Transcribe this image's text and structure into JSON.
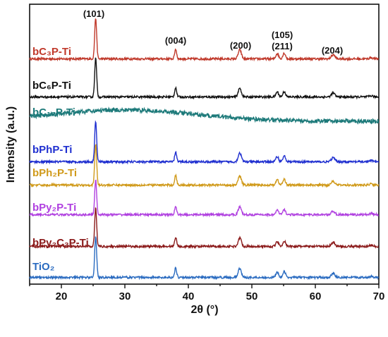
{
  "chart_data": {
    "type": "line",
    "title": "",
    "xlabel": "2θ (°)",
    "ylabel": "Intensity (a.u.)",
    "xlim": [
      15,
      70
    ],
    "xticks": [
      20,
      30,
      40,
      50,
      60,
      70
    ],
    "grid": false,
    "legend": "inline labels",
    "peak_labels": [
      {
        "label": "(101)",
        "x": 25.4
      },
      {
        "label": "(004)",
        "x": 38.0
      },
      {
        "label": "(200)",
        "x": 48.1
      },
      {
        "label": "(105)",
        "x": 54.6
      },
      {
        "label": "(211)",
        "x": 55.2
      },
      {
        "label": "(204)",
        "x": 62.9
      }
    ],
    "series": [
      {
        "name": "bC₃P-Ti",
        "color": "#c0392b",
        "profile": "anatase",
        "peak_101": 1.0
      },
      {
        "name": "bC₆P-Ti",
        "color": "#111111",
        "profile": "anatase",
        "peak_101": 0.95
      },
      {
        "name": "bC₁₂P-Ti",
        "color": "#1d7a7a",
        "profile": "amorphous",
        "peak_101": 0.0
      },
      {
        "name": "bPhP-Ti",
        "color": "#1f2fd0",
        "profile": "anatase",
        "peak_101": 1.0
      },
      {
        "name": "bPh₂P-Ti",
        "color": "#d09a1a",
        "profile": "anatase",
        "peak_101": 1.0
      },
      {
        "name": "bPy₂P-Ti",
        "color": "#b040e0",
        "profile": "anatase",
        "peak_101": 0.85
      },
      {
        "name": "bPy₂C₂P-Ti",
        "color": "#8b1a1a",
        "profile": "anatase",
        "peak_101": 0.95
      },
      {
        "name": "TiO₂",
        "color": "#2a6bc0",
        "profile": "anatase",
        "peak_101": 1.0
      }
    ]
  }
}
